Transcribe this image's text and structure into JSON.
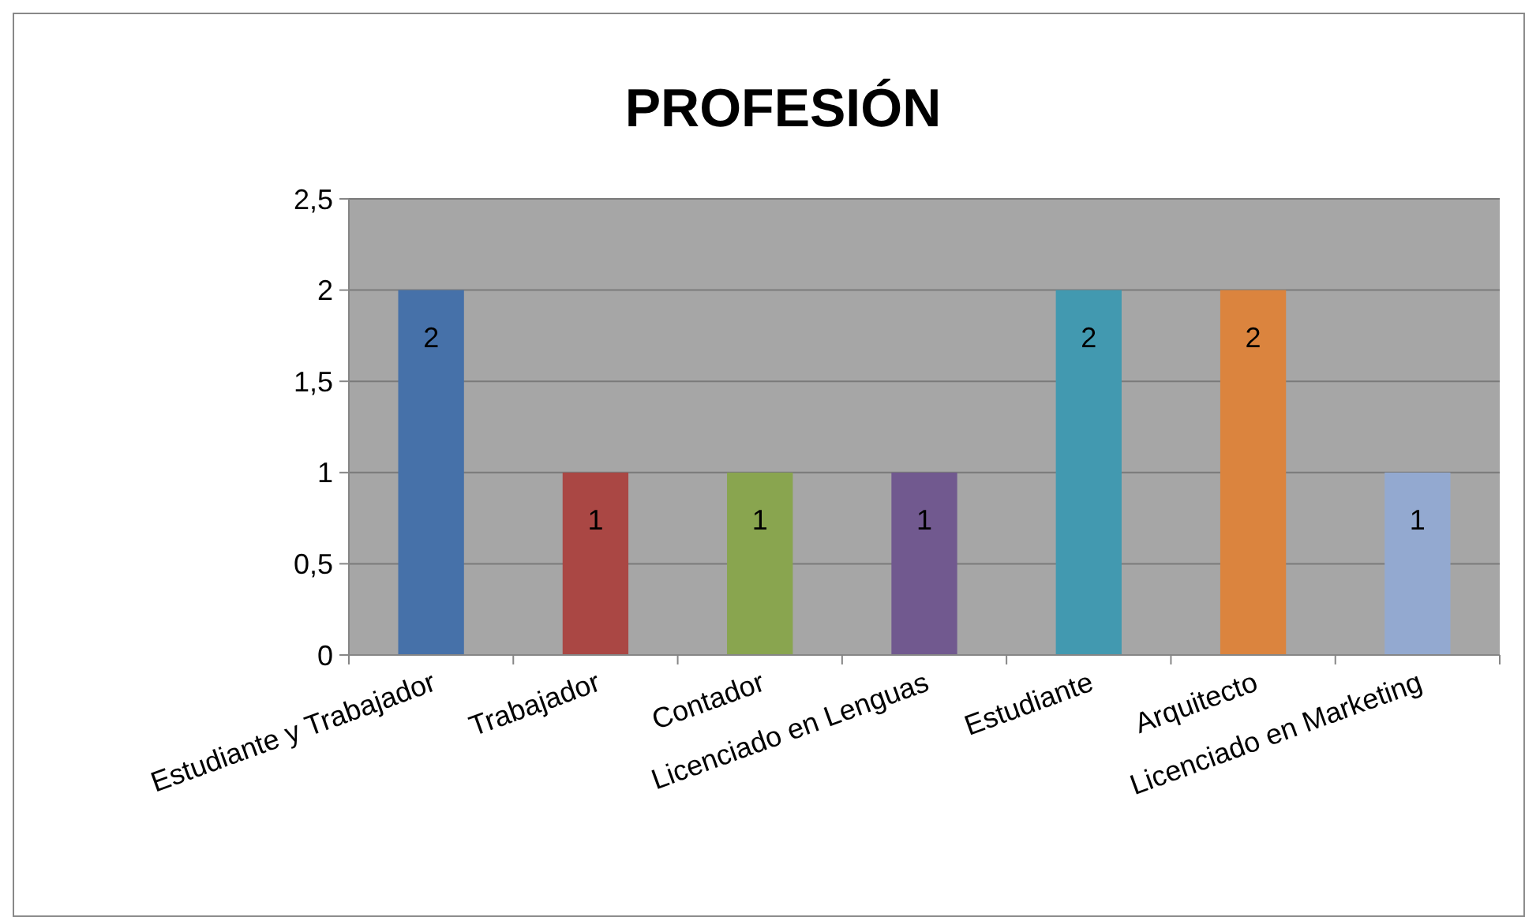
{
  "chart_data": {
    "type": "bar",
    "title": "PROFESIÓN",
    "categories": [
      "Estudiante y Trabajador",
      "Trabajador",
      "Contador",
      "Licenciado en Lenguas",
      "Estudiante",
      "Arquitecto",
      "Licenciado en Marketing"
    ],
    "values": [
      2,
      1,
      1,
      1,
      2,
      2,
      1
    ],
    "colors": [
      "#4671a9",
      "#aa4744",
      "#89a54f",
      "#71598f",
      "#4299b0",
      "#db843e",
      "#93a9d0"
    ],
    "ylim": [
      0,
      2.5
    ],
    "yticks": [
      0,
      {
        "value": 0.5,
        "label": "0,5"
      },
      1,
      {
        "value": 1.5,
        "label": "1,5"
      },
      2,
      {
        "value": 2.5,
        "label": "2,5"
      }
    ],
    "grid": "y",
    "data_labels": true
  }
}
